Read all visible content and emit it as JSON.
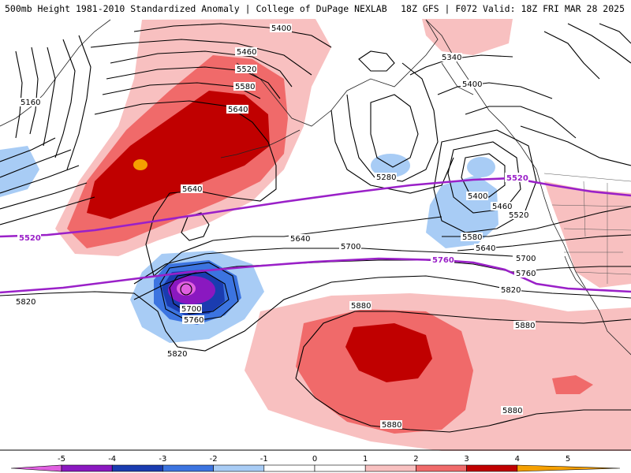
{
  "title": {
    "left": "500mb Height 1981-2010 Standardized Anomaly | College of DuPage NEXLAB",
    "right": "18Z GFS | F072 Valid: 18Z FRI MAR 28 2025"
  },
  "contour_labels": [
    "5400",
    "5460",
    "5520",
    "5580",
    "5640",
    "5160",
    "5640",
    "5640",
    "5700",
    "5820",
    "5700",
    "5760",
    "5820",
    "5280",
    "5340",
    "5400",
    "5400",
    "5460",
    "5520",
    "5580",
    "5640",
    "5700",
    "5760",
    "5820",
    "5880",
    "5880",
    "5880",
    "5880",
    "5520",
    "5520",
    "5760"
  ],
  "colorbar": {
    "ticks": [
      "-5",
      "-4",
      "-3",
      "-2",
      "-1",
      "0",
      "1",
      "2",
      "3",
      "4",
      "5"
    ],
    "colors": [
      "#e060e0",
      "#8a18c0",
      "#1a3cb0",
      "#3c74e0",
      "#a8ccf5",
      "#ffffff",
      "#ffffff",
      "#f8c0c0",
      "#f06a6a",
      "#c00000",
      "#f5a000"
    ]
  }
}
